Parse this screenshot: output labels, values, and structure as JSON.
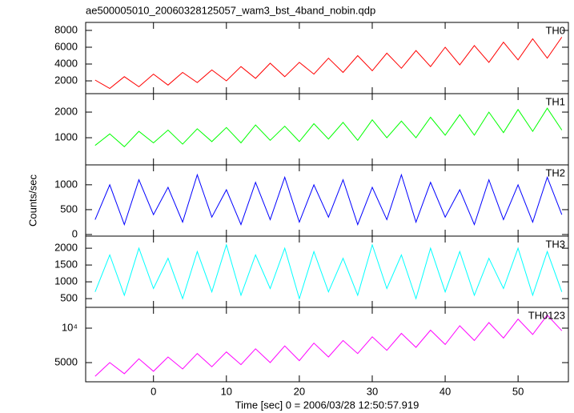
{
  "chart_data": [
    {
      "type": "line",
      "title": "ae500005010_20060328125057_wam3_bst_4band_nobin.qdp",
      "x": [
        -8,
        -6,
        -4,
        -2,
        0,
        2,
        4,
        6,
        8,
        10,
        12,
        14,
        16,
        18,
        20,
        22,
        24,
        26,
        28,
        30,
        32,
        34,
        36,
        38,
        40,
        42,
        44,
        46,
        48,
        50,
        52,
        54,
        56
      ],
      "series": [
        {
          "name": "TH0",
          "color": "#ff0000",
          "values": [
            2100,
            1100,
            2500,
            1300,
            2800,
            1500,
            3000,
            1800,
            3300,
            2000,
            3700,
            2300,
            4100,
            2500,
            4200,
            2800,
            4700,
            3000,
            5000,
            3200,
            5300,
            3500,
            5600,
            3700,
            6000,
            3900,
            6200,
            4200,
            6600,
            4500,
            7000,
            4700,
            7200
          ]
        }
      ],
      "xlim": [
        -9.3,
        56.9
      ],
      "xticks": [
        0,
        10,
        20,
        30,
        40,
        50
      ],
      "ylim": [
        480,
        8950
      ],
      "yticks": [
        2000,
        4000,
        6000,
        8000
      ]
    },
    {
      "type": "line",
      "x": [
        -8,
        -6,
        -4,
        -2,
        0,
        2,
        4,
        6,
        8,
        10,
        12,
        14,
        16,
        18,
        20,
        22,
        24,
        26,
        28,
        30,
        32,
        34,
        36,
        38,
        40,
        42,
        44,
        46,
        48,
        50,
        52,
        54,
        56
      ],
      "series": [
        {
          "name": "TH1",
          "color": "#00ff00",
          "values": [
            700,
            1150,
            650,
            1250,
            800,
            1300,
            750,
            1350,
            850,
            1400,
            800,
            1500,
            900,
            1450,
            850,
            1550,
            950,
            1600,
            900,
            1700,
            1000,
            1650,
            1000,
            1800,
            1100,
            1900,
            1100,
            2000,
            1200,
            2100,
            1250,
            2150,
            1300
          ]
        }
      ],
      "xlim": [
        -9.3,
        56.9
      ],
      "xticks": [
        0,
        10,
        20,
        30,
        40,
        50
      ],
      "ylim": [
        -60,
        2720
      ],
      "yticks": [
        1000,
        2000
      ]
    },
    {
      "type": "line",
      "ylabel": "Counts/sec",
      "x": [
        -8,
        -6,
        -4,
        -2,
        0,
        2,
        4,
        6,
        8,
        10,
        12,
        14,
        16,
        18,
        20,
        22,
        24,
        26,
        28,
        30,
        32,
        34,
        36,
        38,
        40,
        42,
        44,
        46,
        48,
        50,
        52,
        54,
        56
      ],
      "series": [
        {
          "name": "TH2",
          "color": "#0000ff",
          "values": [
            300,
            1000,
            200,
            1100,
            400,
            950,
            250,
            1200,
            350,
            900,
            200,
            1050,
            300,
            1150,
            250,
            1000,
            350,
            1100,
            200,
            950,
            300,
            1200,
            250,
            1050,
            350,
            900,
            200,
            1100,
            300,
            1000,
            250,
            1150,
            400
          ]
        }
      ],
      "xlim": [
        -9.3,
        56.9
      ],
      "xticks": [
        0,
        10,
        20,
        30,
        40,
        50
      ],
      "ylim": [
        -32,
        1400
      ],
      "yticks": [
        0,
        500,
        1000
      ]
    },
    {
      "type": "line",
      "x": [
        -8,
        -6,
        -4,
        -2,
        0,
        2,
        4,
        6,
        8,
        10,
        12,
        14,
        16,
        18,
        20,
        22,
        24,
        26,
        28,
        30,
        32,
        34,
        36,
        38,
        40,
        42,
        44,
        46,
        48,
        50,
        52,
        54,
        56
      ],
      "series": [
        {
          "name": "TH3",
          "color": "#00ffff",
          "values": [
            700,
            1800,
            600,
            2000,
            800,
            1700,
            500,
            1900,
            700,
            2100,
            600,
            1800,
            800,
            2000,
            500,
            1900,
            700,
            1700,
            600,
            2100,
            800,
            1800,
            500,
            2000,
            700,
            1900,
            600,
            1700,
            800,
            2000,
            600,
            1900,
            700
          ]
        }
      ],
      "xlim": [
        -9.3,
        56.9
      ],
      "xticks": [
        0,
        10,
        20,
        30,
        40,
        50
      ],
      "ylim": [
        240,
        2360
      ],
      "yticks": [
        500,
        1000,
        1500,
        2000
      ]
    },
    {
      "type": "line",
      "xlabel": "Time [sec] 0 = 2006/03/28 12:50:57.919",
      "log_y": true,
      "x": [
        -8,
        -6,
        -4,
        -2,
        0,
        2,
        4,
        6,
        8,
        10,
        12,
        14,
        16,
        18,
        20,
        22,
        24,
        26,
        28,
        30,
        32,
        34,
        36,
        38,
        40,
        42,
        44,
        46,
        48,
        50,
        52,
        54,
        56
      ],
      "series": [
        {
          "name": "TH0123",
          "color": "#ff00ff",
          "values": [
            3800,
            5000,
            4000,
            5400,
            4200,
            5600,
            4400,
            6000,
            4600,
            6200,
            4800,
            6600,
            5000,
            7000,
            5200,
            7400,
            5600,
            7800,
            6000,
            8400,
            6400,
            9000,
            6800,
            9600,
            7200,
            10500,
            7800,
            11200,
            8200,
            12000,
            8800,
            13000,
            9500
          ]
        }
      ],
      "xlim": [
        -9.3,
        56.9
      ],
      "xticks": [
        0,
        10,
        20,
        30,
        40,
        50
      ],
      "ylim": [
        3400,
        15200
      ],
      "yticks": [
        5000,
        {
          "value": 10000,
          "label": "10⁴"
        }
      ]
    }
  ]
}
